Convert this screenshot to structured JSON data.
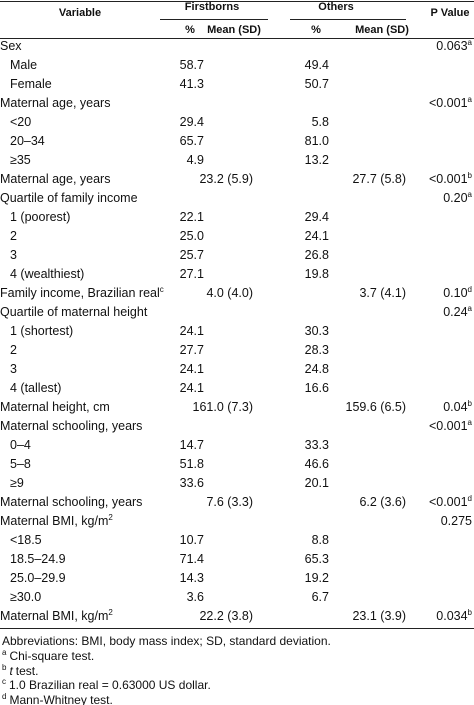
{
  "header": {
    "variable": "Variable",
    "group1": "Firstborns",
    "group2": "Others",
    "p_value": "P Value",
    "sub1": "%",
    "sub2": "Mean (SD)",
    "sub3": "%",
    "sub4": "Mean (SD)"
  },
  "rows": [
    {
      "label": "Sex",
      "p": "0.063",
      "p_sup": "a"
    },
    {
      "label": "Male",
      "indent": true,
      "fb_pct": "58.7",
      "ot_pct": "49.4"
    },
    {
      "label": "Female",
      "indent": true,
      "fb_pct": "41.3",
      "ot_pct": "50.7"
    },
    {
      "label": "Maternal age, years",
      "p": "<0.001",
      "p_sup": "a"
    },
    {
      "label": "<20",
      "indent": true,
      "fb_pct": "29.4",
      "ot_pct": "5.8"
    },
    {
      "label": "20–34",
      "indent": true,
      "fb_pct": "65.7",
      "ot_pct": "81.0"
    },
    {
      "label": "≥35",
      "indent": true,
      "fb_pct": "4.9",
      "ot_pct": "13.2"
    },
    {
      "label": "Maternal age, years",
      "fb_mean": "23.2 (5.9)",
      "ot_mean": "27.7 (5.8)",
      "p": "<0.001",
      "p_sup": "b"
    },
    {
      "label": "Quartile of family income",
      "p": "0.20",
      "p_sup": "a"
    },
    {
      "label": "1 (poorest)",
      "indent": true,
      "fb_pct": "22.1",
      "ot_pct": "29.4"
    },
    {
      "label": "2",
      "indent": true,
      "fb_pct": "25.0",
      "ot_pct": "24.1"
    },
    {
      "label": "3",
      "indent": true,
      "fb_pct": "25.7",
      "ot_pct": "26.8"
    },
    {
      "label": "4 (wealthiest)",
      "indent": true,
      "fb_pct": "27.1",
      "ot_pct": "19.8"
    },
    {
      "label": "Family income, Brazilian real",
      "label_sup": "c",
      "fb_mean": "4.0 (4.0)",
      "ot_mean": "3.7 (4.1)",
      "p": "0.10",
      "p_sup": "d"
    },
    {
      "label": "Quartile of maternal height",
      "p": "0.24",
      "p_sup": "a"
    },
    {
      "label": "1 (shortest)",
      "indent": true,
      "fb_pct": "24.1",
      "ot_pct": "30.3"
    },
    {
      "label": "2",
      "indent": true,
      "fb_pct": "27.7",
      "ot_pct": "28.3"
    },
    {
      "label": "3",
      "indent": true,
      "fb_pct": "24.1",
      "ot_pct": "24.8"
    },
    {
      "label": "4 (tallest)",
      "indent": true,
      "fb_pct": "24.1",
      "ot_pct": "16.6"
    },
    {
      "label": "Maternal height, cm",
      "fb_mean": "161.0 (7.3)",
      "ot_mean": "159.6 (6.5)",
      "p": "0.04",
      "p_sup": "b"
    },
    {
      "label": "Maternal schooling, years",
      "p": "<0.001",
      "p_sup": "a"
    },
    {
      "label": "0–4",
      "indent": true,
      "fb_pct": "14.7",
      "ot_pct": "33.3"
    },
    {
      "label": "5–8",
      "indent": true,
      "fb_pct": "51.8",
      "ot_pct": "46.6"
    },
    {
      "label": "≥9",
      "indent": true,
      "fb_pct": "33.6",
      "ot_pct": "20.1"
    },
    {
      "label": "Maternal schooling, years",
      "fb_mean": "7.6 (3.3)",
      "ot_mean": "6.2 (3.6)",
      "p": "<0.001",
      "p_sup": "d"
    },
    {
      "label": "Maternal BMI, kg/m",
      "label_sup": "2",
      "p": "0.275"
    },
    {
      "label": "<18.5",
      "indent": true,
      "fb_pct": "10.7",
      "ot_pct": "8.8"
    },
    {
      "label": "18.5–24.9",
      "indent": true,
      "fb_pct": "71.4",
      "ot_pct": "65.3"
    },
    {
      "label": "25.0–29.9",
      "indent": true,
      "fb_pct": "14.3",
      "ot_pct": "19.2"
    },
    {
      "label": "≥30.0",
      "indent": true,
      "fb_pct": "3.6",
      "ot_pct": "6.7"
    },
    {
      "label": "Maternal BMI, kg/m",
      "label_sup": "2",
      "fb_mean": "22.2 (3.8)",
      "ot_mean": "23.1 (3.9)",
      "p": "0.034",
      "p_sup": "b"
    }
  ],
  "footnotes": {
    "abbreviations": "Abbreviations: BMI, body mass index; SD, standard deviation.",
    "notes": [
      {
        "mark": "a",
        "text": "Chi-square test."
      },
      {
        "mark": "b",
        "italic": "t",
        "text": "test."
      },
      {
        "mark": "c",
        "text": "1.0 Brazilian real = 0.63000 US dollar."
      },
      {
        "mark": "d",
        "text": "Mann-Whitney test."
      }
    ]
  }
}
